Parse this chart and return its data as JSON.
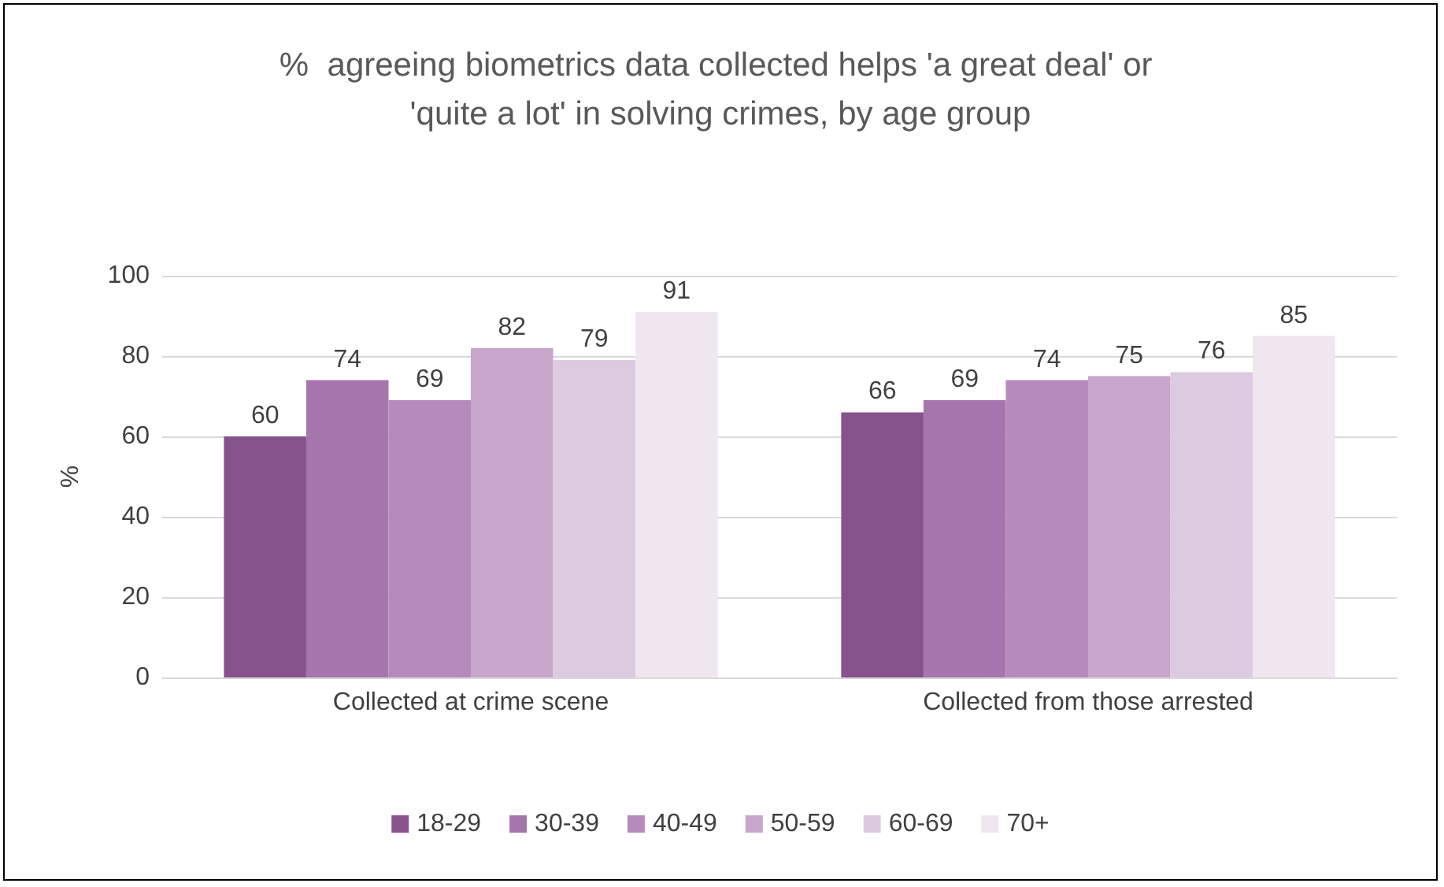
{
  "chart_data": {
    "type": "bar",
    "title": "%  agreeing biometrics data collected helps 'a great deal' or 'quite a lot' in solving crimes, by age group",
    "ylabel": "%",
    "categories": [
      "Collected at crime scene",
      "Collected from those arrested"
    ],
    "series": [
      {
        "name": "18-29",
        "color": "#86528c",
        "values": [
          60,
          66
        ]
      },
      {
        "name": "30-39",
        "color": "#a675ad",
        "values": [
          74,
          69
        ]
      },
      {
        "name": "40-49",
        "color": "#b68bbc",
        "values": [
          69,
          74
        ]
      },
      {
        "name": "50-59",
        "color": "#c8a5cb",
        "values": [
          82,
          75
        ]
      },
      {
        "name": "60-69",
        "color": "#dccbe0",
        "values": [
          79,
          76
        ]
      },
      {
        "name": "70+",
        "color": "#efe6f0",
        "values": [
          91,
          85
        ]
      }
    ],
    "ylim": [
      0,
      100
    ],
    "yticks": [
      0,
      20,
      40,
      60,
      80,
      100
    ],
    "grid": "y",
    "legend": "bottom",
    "data_labels": true
  }
}
